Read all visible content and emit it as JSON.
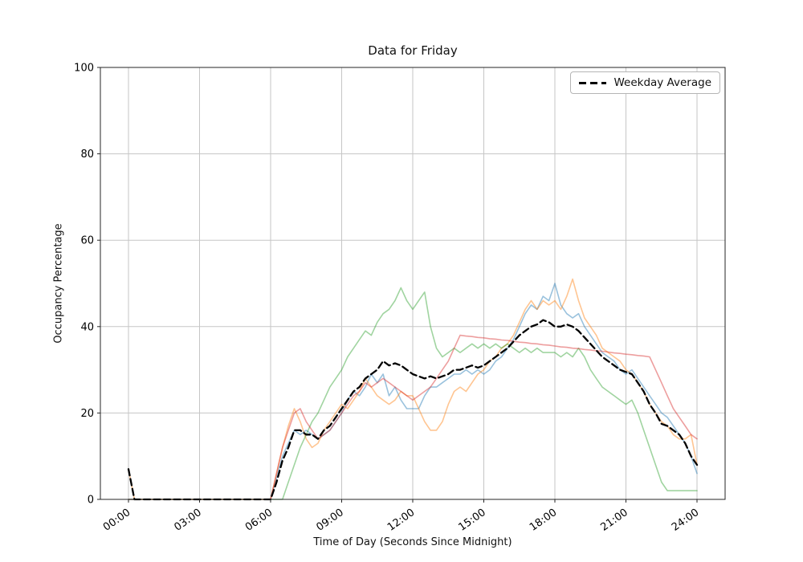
{
  "chart_data": {
    "type": "line",
    "title": "Data for Friday",
    "xlabel": "Time of Day (Seconds Since Midnight)",
    "ylabel": "Occupancy Percentage",
    "legend_label": "Weekday Average",
    "legend_position": "upper right",
    "grid": true,
    "ylim": [
      0,
      100
    ],
    "y_ticks": [
      0,
      20,
      40,
      60,
      80,
      100
    ],
    "x_ticks": [
      "00:00",
      "03:00",
      "06:00",
      "09:00",
      "12:00",
      "15:00",
      "18:00",
      "21:00",
      "24:00"
    ],
    "x_tick_hours": [
      0,
      3,
      6,
      9,
      12,
      15,
      18,
      21,
      24
    ],
    "x_start_hours": 0,
    "x_step_hours": 0.25,
    "colors": {
      "grid": "#c6c6c6",
      "spine": "#262626"
    },
    "series": [
      {
        "name": "series-1",
        "color": "#1f77b4",
        "alpha": 0.45,
        "width": 1.6,
        "dash": false,
        "values": [
          0,
          0,
          0,
          0,
          0,
          0,
          0,
          0,
          0,
          0,
          0,
          0,
          0,
          0,
          0,
          0,
          0,
          0,
          0,
          0,
          0,
          0,
          0,
          0,
          0,
          5,
          10,
          13,
          16,
          15,
          16,
          15,
          14,
          15,
          16,
          18,
          20,
          23,
          25,
          24,
          26,
          29,
          27,
          29,
          24,
          26,
          23,
          21,
          21,
          21,
          24,
          26,
          26,
          27,
          28,
          29,
          29,
          30,
          29,
          30,
          29,
          30,
          32,
          33,
          35,
          37,
          40,
          43,
          45,
          44,
          47,
          46,
          50,
          45,
          43,
          42,
          43,
          40,
          38,
          36,
          34,
          33,
          32,
          30,
          29,
          30,
          28,
          26,
          24,
          22,
          20,
          19,
          17,
          15,
          13,
          10,
          6
        ]
      },
      {
        "name": "series-2",
        "color": "#ff7f0e",
        "alpha": 0.45,
        "width": 1.6,
        "dash": false,
        "values": [
          7,
          0,
          0,
          0,
          0,
          0,
          0,
          0,
          0,
          0,
          0,
          0,
          0,
          0,
          0,
          0,
          0,
          0,
          0,
          0,
          0,
          0,
          0,
          0,
          0,
          6,
          12,
          17,
          21,
          18,
          14,
          12,
          13,
          16,
          18,
          20,
          22,
          21,
          23,
          25,
          28,
          26,
          24,
          23,
          22,
          23,
          25,
          24,
          24,
          21,
          18,
          16,
          16,
          18,
          22,
          25,
          26,
          25,
          27,
          29,
          30,
          32,
          33,
          35,
          36,
          38,
          41,
          44,
          46,
          44,
          46,
          45,
          46,
          44,
          47,
          51,
          46,
          42,
          40,
          38,
          35,
          34,
          33,
          32,
          30,
          29,
          27,
          25,
          22,
          20,
          18,
          17,
          15,
          14,
          14,
          15,
          8
        ]
      },
      {
        "name": "series-3",
        "color": "#2ca02c",
        "alpha": 0.45,
        "width": 1.6,
        "dash": false,
        "values": [
          0,
          0,
          0,
          0,
          0,
          0,
          0,
          0,
          0,
          0,
          0,
          0,
          0,
          0,
          0,
          0,
          0,
          0,
          0,
          0,
          0,
          0,
          0,
          0,
          0,
          0,
          0,
          4,
          8,
          12,
          15,
          18,
          20,
          23,
          26,
          28,
          30,
          33,
          35,
          37,
          39,
          38,
          41,
          43,
          44,
          46,
          49,
          46,
          44,
          46,
          48,
          40,
          35,
          33,
          34,
          35,
          34,
          35,
          36,
          35,
          36,
          35,
          36,
          35,
          36,
          35,
          34,
          35,
          34,
          35,
          34,
          34,
          34,
          33,
          34,
          33,
          35,
          33,
          30,
          28,
          26,
          25,
          24,
          23,
          22,
          23,
          20,
          16,
          12,
          8,
          4,
          2,
          2,
          2,
          2,
          2,
          2
        ]
      },
      {
        "name": "series-4",
        "color": "#d62728",
        "alpha": 0.45,
        "width": 1.6,
        "dash": false,
        "values": [
          0,
          0,
          0,
          0,
          0,
          0,
          0,
          0,
          0,
          0,
          0,
          0,
          0,
          0,
          0,
          0,
          0,
          0,
          0,
          0,
          0,
          0,
          0,
          0,
          0,
          6,
          12,
          16,
          20,
          21,
          18,
          16,
          14,
          15,
          16,
          18,
          20,
          22,
          24,
          25,
          27,
          26,
          27,
          28,
          27,
          26,
          25,
          24,
          23,
          24,
          25,
          26,
          28,
          30,
          32,
          35,
          38,
          37.8,
          37.7,
          37.5,
          37.4,
          37.2,
          37.1,
          36.9,
          36.8,
          36.6,
          36.4,
          36.3,
          36.1,
          36.0,
          35.8,
          35.7,
          35.5,
          35.3,
          35.2,
          35.0,
          34.9,
          34.7,
          34.6,
          34.4,
          34.3,
          34.1,
          33.9,
          33.8,
          33.6,
          33.5,
          33.3,
          33.2,
          33,
          30,
          27,
          24,
          21,
          19,
          17,
          15,
          14
        ]
      },
      {
        "name": "weekday-average",
        "color": "#000000",
        "alpha": 1,
        "width": 2.3,
        "dash": true,
        "values": [
          7,
          0,
          0,
          0,
          0,
          0,
          0,
          0,
          0,
          0,
          0,
          0,
          0,
          0,
          0,
          0,
          0,
          0,
          0,
          0,
          0,
          0,
          0,
          0,
          0,
          4,
          9,
          12,
          16,
          16,
          15,
          15,
          14,
          16,
          17,
          19,
          21,
          23,
          25,
          26,
          28,
          29,
          30,
          32,
          31,
          31.5,
          31,
          30,
          29,
          28.5,
          28,
          28.5,
          28,
          28.5,
          29,
          30,
          30,
          30.5,
          31,
          30.5,
          31,
          32,
          33,
          34,
          35,
          36.5,
          38,
          39,
          40,
          40.5,
          41.5,
          41,
          40,
          40,
          40.5,
          40,
          39,
          37.5,
          36,
          34.5,
          33,
          32,
          31,
          30,
          29.5,
          29,
          27,
          25,
          22,
          20,
          17.5,
          17,
          16,
          15,
          13,
          10,
          8
        ]
      }
    ]
  }
}
